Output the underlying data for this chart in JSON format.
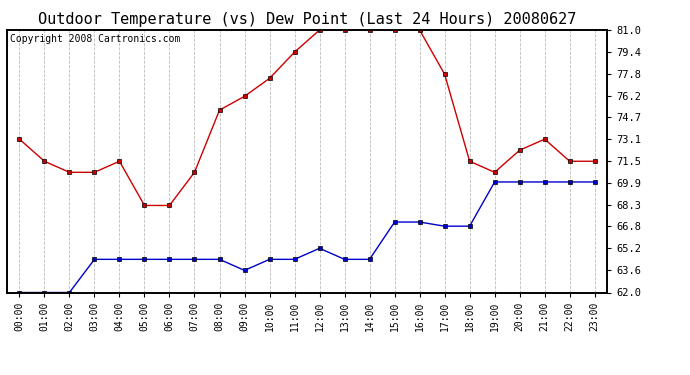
{
  "title": "Outdoor Temperature (vs) Dew Point (Last 24 Hours) 20080627",
  "copyright": "Copyright 2008 Cartronics.com",
  "x_labels": [
    "00:00",
    "01:00",
    "02:00",
    "03:00",
    "04:00",
    "05:00",
    "06:00",
    "07:00",
    "08:00",
    "09:00",
    "10:00",
    "11:00",
    "12:00",
    "13:00",
    "14:00",
    "15:00",
    "16:00",
    "17:00",
    "18:00",
    "19:00",
    "20:00",
    "21:00",
    "22:00",
    "23:00"
  ],
  "temp_data": [
    73.1,
    71.5,
    70.7,
    70.7,
    71.5,
    68.3,
    68.3,
    70.7,
    75.2,
    76.2,
    77.5,
    79.4,
    81.0,
    81.0,
    81.0,
    81.0,
    81.0,
    77.8,
    71.5,
    70.7,
    72.3,
    73.1,
    71.5,
    71.5
  ],
  "dew_data": [
    62.0,
    62.0,
    62.0,
    64.4,
    64.4,
    64.4,
    64.4,
    64.4,
    64.4,
    63.6,
    64.4,
    64.4,
    65.2,
    64.4,
    64.4,
    67.1,
    67.1,
    66.8,
    66.8,
    70.0,
    70.0,
    70.0,
    70.0,
    70.0
  ],
  "temp_color": "#cc0000",
  "dew_color": "#0000cc",
  "bg_color": "#ffffff",
  "plot_bg": "#ffffff",
  "grid_color": "#aaaaaa",
  "ylim": [
    62.0,
    81.0
  ],
  "yticks": [
    62.0,
    63.6,
    65.2,
    66.8,
    68.3,
    69.9,
    71.5,
    73.1,
    74.7,
    76.2,
    77.8,
    79.4,
    81.0
  ],
  "title_fontsize": 11,
  "copyright_fontsize": 7,
  "tick_fontsize": 7,
  "ytick_fontsize": 7.5
}
